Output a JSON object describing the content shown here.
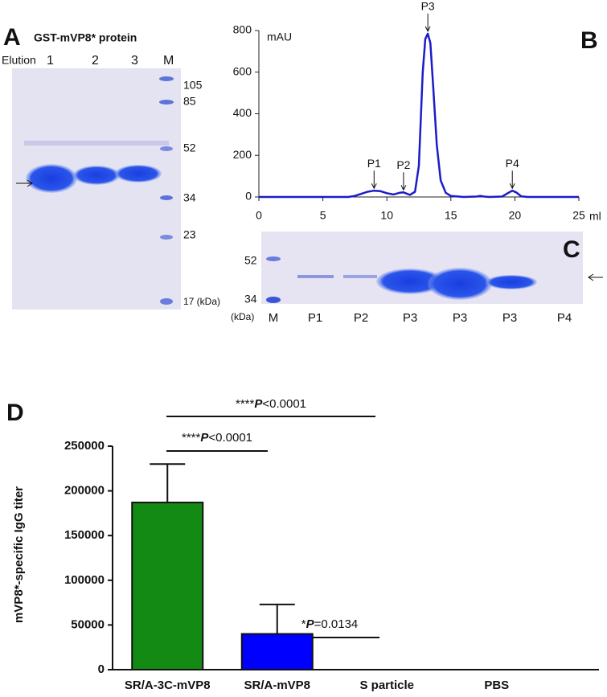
{
  "panel_a": {
    "letter": "A",
    "title": "GST-mVP8* protein",
    "lane_header": "Elution",
    "lanes": [
      "1",
      "2",
      "3",
      "M"
    ],
    "markers": [
      "105",
      "85",
      "52",
      "34",
      "23",
      "17 (kDa)"
    ]
  },
  "panel_c": {
    "letter": "C",
    "markers": [
      "52",
      "34"
    ],
    "unit": "(kDa)",
    "lanes": [
      "M",
      "P1",
      "P2",
      "P3",
      "P3",
      "P3",
      "P4"
    ]
  },
  "chart_data": [
    {
      "type": "line",
      "letter": "B",
      "ylabel": "mAU",
      "xlabel": "ml",
      "color": "#1c1cc8",
      "x": [
        0,
        7,
        7.5,
        8,
        8.5,
        9,
        9.5,
        10,
        10.5,
        11,
        11.3,
        11.8,
        12.2,
        12.5,
        12.8,
        13,
        13.2,
        13.4,
        13.6,
        13.9,
        14.2,
        14.6,
        15,
        16,
        17,
        17.3,
        17.6,
        18,
        19,
        19.5,
        19.8,
        20.1,
        20.5,
        21,
        25
      ],
      "values": [
        0,
        0,
        5,
        15,
        25,
        30,
        28,
        18,
        12,
        20,
        22,
        10,
        25,
        150,
        600,
        760,
        785,
        740,
        550,
        250,
        80,
        20,
        5,
        0,
        2,
        5,
        2,
        0,
        2,
        20,
        30,
        22,
        3,
        0,
        0
      ],
      "xlim": [
        0,
        25
      ],
      "xticks": [
        0,
        5,
        10,
        15,
        20,
        25
      ],
      "ylim": [
        0,
        800
      ],
      "yticks": [
        0,
        200,
        400,
        600,
        800
      ],
      "annotations": [
        {
          "text": "P1",
          "x": 9,
          "y": 30
        },
        {
          "text": "P2",
          "x": 11.3,
          "y": 22
        },
        {
          "text": "P3",
          "x": 13.2,
          "y": 785
        },
        {
          "text": "P4",
          "x": 19.8,
          "y": 30
        }
      ]
    },
    {
      "type": "bar",
      "letter": "D",
      "ylabel": "mVP8*-specific IgG titer",
      "categories": [
        "SR/A-3C-mVP8",
        "SR/A-mVP8",
        "S particle",
        "PBS"
      ],
      "values": [
        187000,
        40000,
        0,
        0
      ],
      "errors": [
        43000,
        33000,
        0,
        0
      ],
      "colors": [
        "#138a13",
        "#0000ff",
        "#808080",
        "#808080"
      ],
      "ylim": [
        0,
        250000
      ],
      "yticks": [
        0,
        50000,
        100000,
        150000,
        200000,
        250000
      ],
      "significance": [
        {
          "stars": "****",
          "p": "P",
          "rest": "<0.0001"
        },
        {
          "stars": "****",
          "p": "P",
          "rest": "<0.0001"
        },
        {
          "stars": "*",
          "p": "P",
          "rest": "=0.0134"
        }
      ]
    }
  ]
}
